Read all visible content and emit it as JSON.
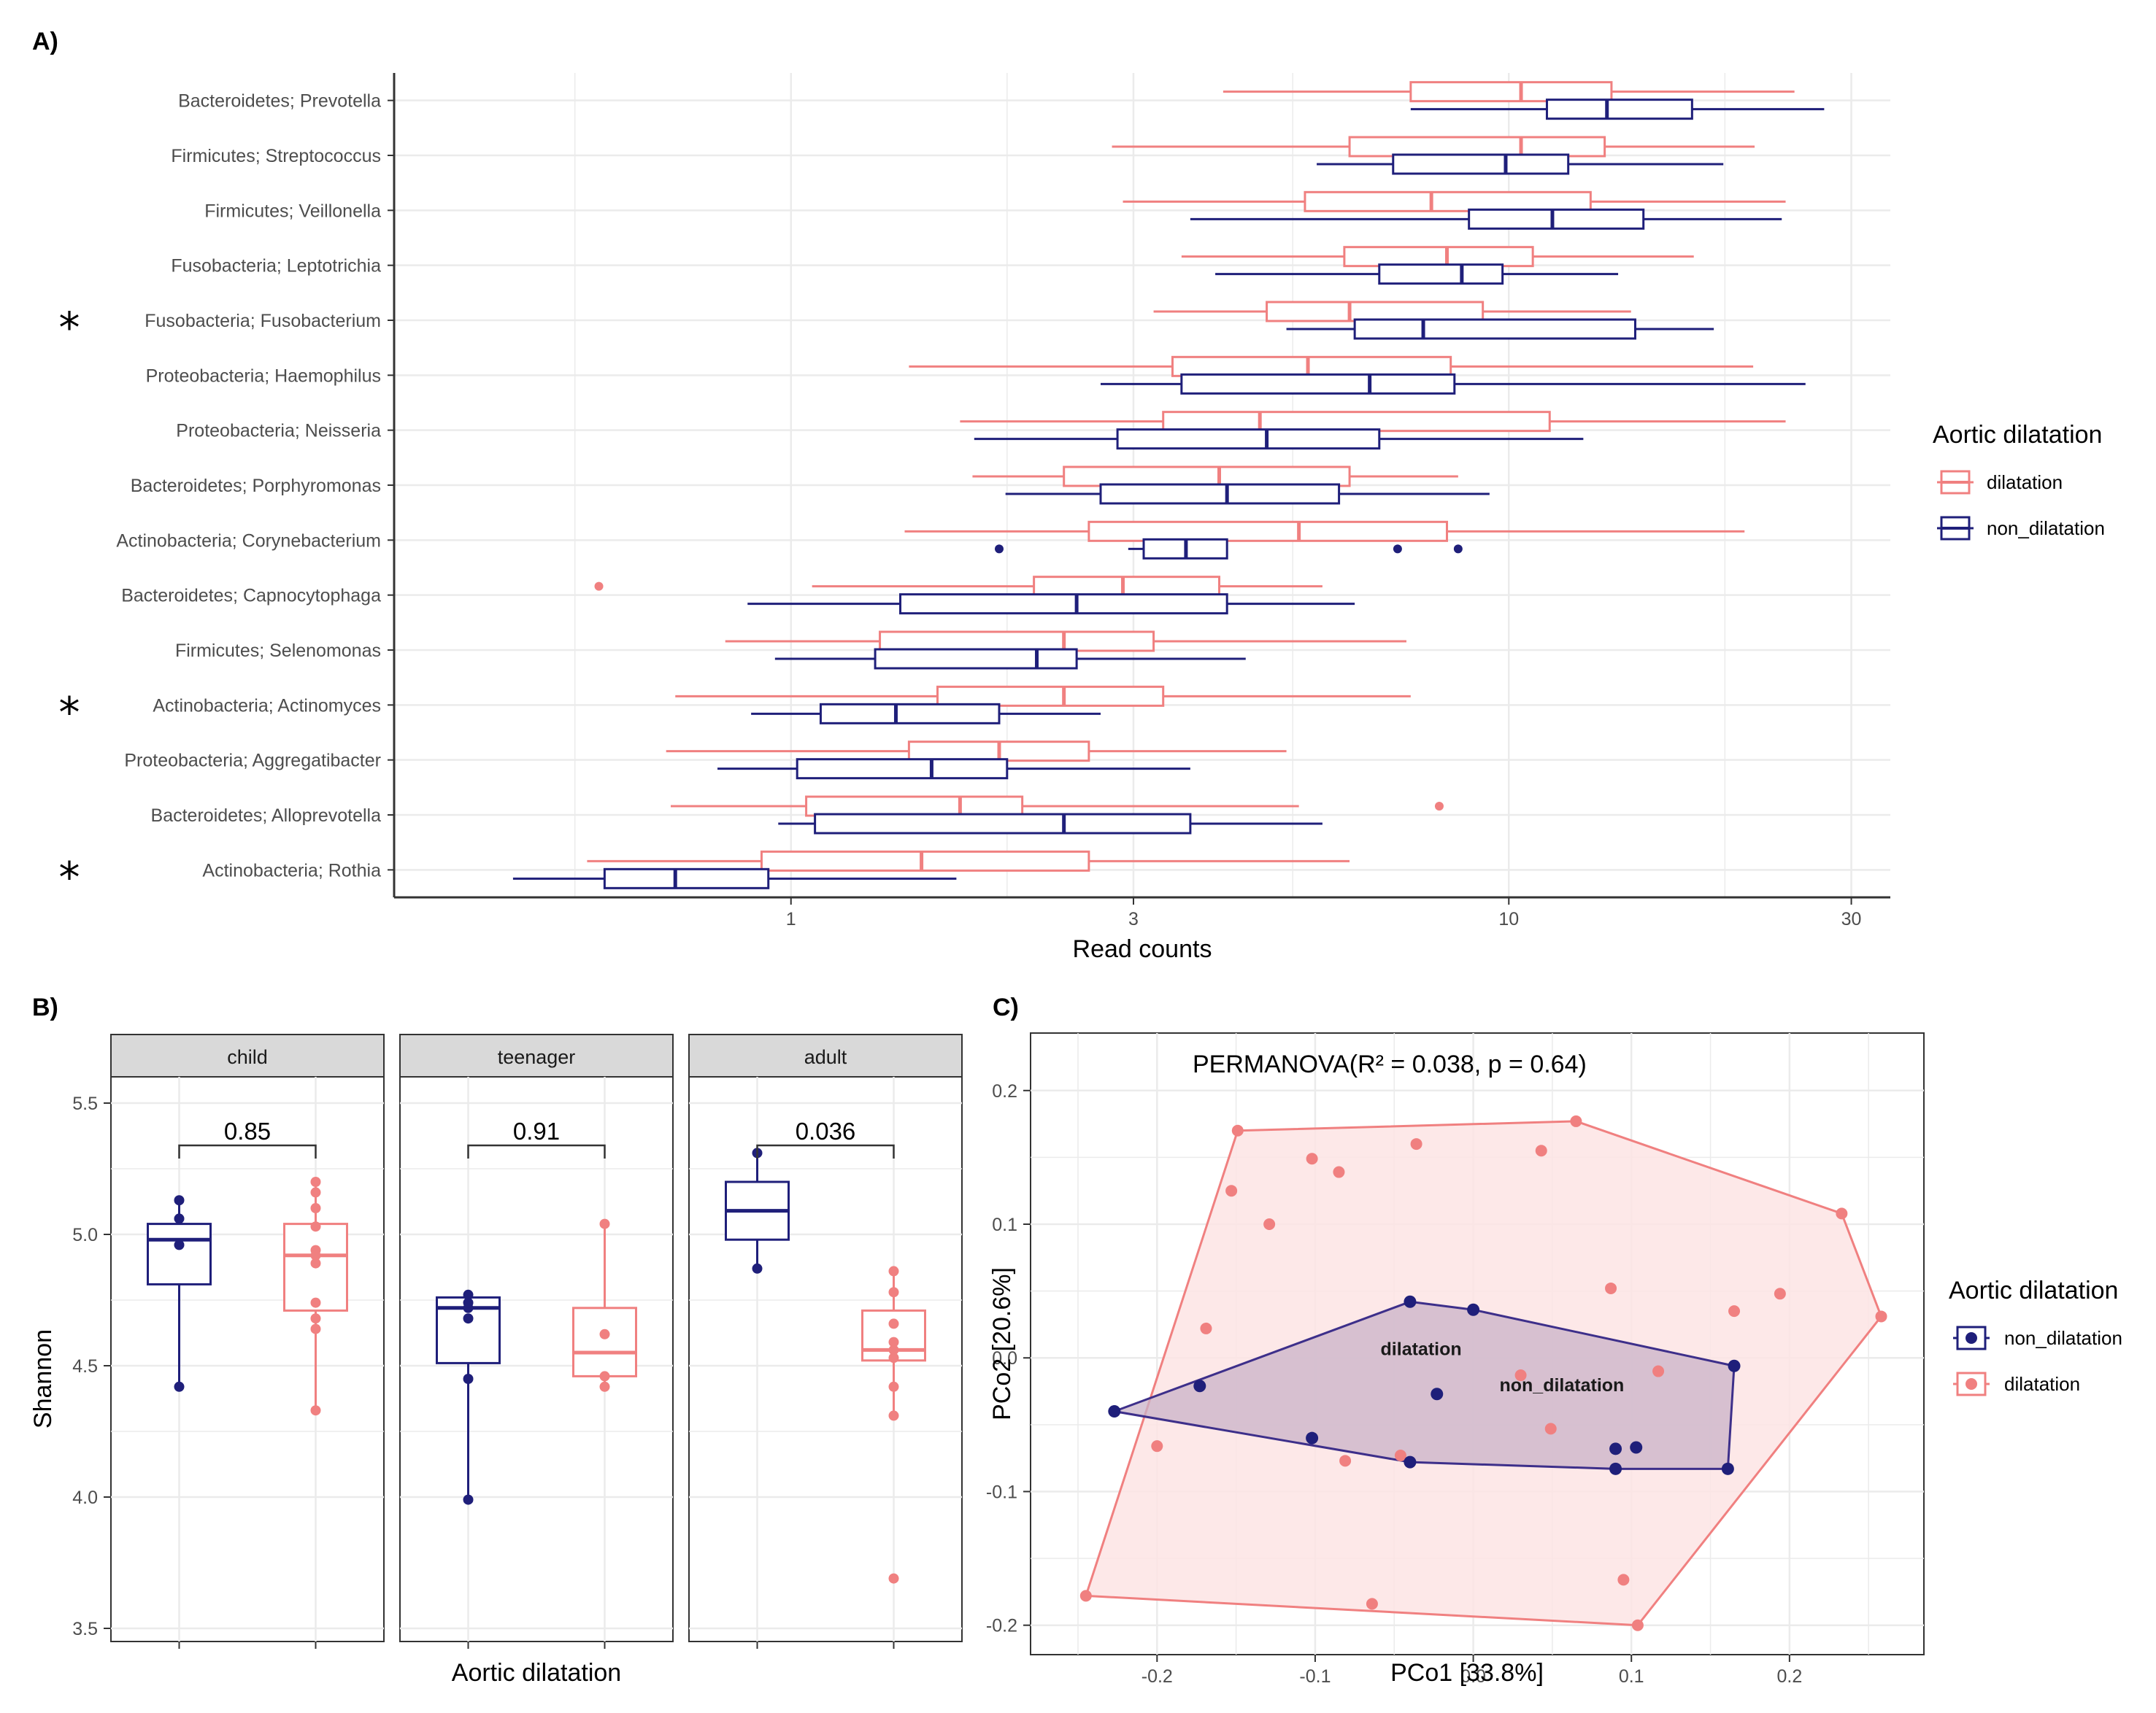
{
  "colors": {
    "dilatation": "#f08080",
    "non_dilatation": "#1f1f7a",
    "grid": "#ebebeb",
    "strip_bg": "#d9d9d9",
    "hull_dil_fill": "#fde4e4",
    "hull_non_fill": "#c9b3c8"
  },
  "panels": {
    "a": "A)",
    "b": "B)",
    "c": "C)"
  },
  "chart_data": [
    {
      "panel": "A",
      "type": "boxplot",
      "orientation": "horizontal",
      "x_scale": "log10",
      "xlabel": "Read counts",
      "xlim": [
        0.28,
        34
      ],
      "xticks": [
        1,
        3,
        10,
        30
      ],
      "xtick_labels": [
        "1",
        "3",
        "10",
        "30"
      ],
      "legend": {
        "title": "Aortic dilatation",
        "entries": [
          "dilatation",
          "non_dilatation"
        ],
        "position": "right"
      },
      "significance_marker": "*",
      "categories": [
        {
          "label": "Bacteroidetes; Prevotella",
          "star": false,
          "dilatation": {
            "wmin": 4.0,
            "q1": 7.3,
            "med": 10.4,
            "q3": 13.9,
            "wmax": 25.0
          },
          "non_dilatation": {
            "wmin": 7.3,
            "q1": 11.3,
            "med": 13.7,
            "q3": 18.0,
            "wmax": 27.5
          }
        },
        {
          "label": "Firmicutes; Streptococcus",
          "star": false,
          "dilatation": {
            "wmin": 2.8,
            "q1": 6.0,
            "med": 10.4,
            "q3": 13.6,
            "wmax": 22.0
          },
          "non_dilatation": {
            "wmin": 5.4,
            "q1": 6.9,
            "med": 9.9,
            "q3": 12.1,
            "wmax": 19.9
          }
        },
        {
          "label": "Firmicutes; Veillonella",
          "star": false,
          "dilatation": {
            "wmin": 2.9,
            "q1": 5.2,
            "med": 7.8,
            "q3": 13.0,
            "wmax": 24.3
          },
          "non_dilatation": {
            "wmin": 3.6,
            "q1": 8.8,
            "med": 11.5,
            "q3": 15.4,
            "wmax": 24.0
          }
        },
        {
          "label": "Fusobacteria; Leptotrichia",
          "star": false,
          "dilatation": {
            "wmin": 3.5,
            "q1": 5.9,
            "med": 8.2,
            "q3": 10.8,
            "wmax": 18.1
          },
          "non_dilatation": {
            "wmin": 3.9,
            "q1": 6.6,
            "med": 8.6,
            "q3": 9.8,
            "wmax": 14.2
          }
        },
        {
          "label": "Fusobacteria; Fusobacterium",
          "star": true,
          "dilatation": {
            "wmin": 3.2,
            "q1": 4.6,
            "med": 6.0,
            "q3": 9.2,
            "wmax": 14.8
          },
          "non_dilatation": {
            "wmin": 4.9,
            "q1": 6.1,
            "med": 7.6,
            "q3": 15.0,
            "wmax": 19.3
          }
        },
        {
          "label": "Proteobacteria; Haemophilus",
          "star": false,
          "dilatation": {
            "wmin": 1.46,
            "q1": 3.4,
            "med": 5.25,
            "q3": 8.3,
            "wmax": 21.9
          },
          "non_dilatation": {
            "wmin": 2.7,
            "q1": 3.5,
            "med": 6.4,
            "q3": 8.4,
            "wmax": 25.9
          }
        },
        {
          "label": "Proteobacteria; Neisseria",
          "star": false,
          "dilatation": {
            "wmin": 1.72,
            "q1": 3.3,
            "med": 4.5,
            "q3": 11.4,
            "wmax": 24.3
          },
          "non_dilatation": {
            "wmin": 1.8,
            "q1": 2.85,
            "med": 4.6,
            "q3": 6.6,
            "wmax": 12.7
          }
        },
        {
          "label": "Bacteroidetes; Porphyromonas",
          "star": false,
          "dilatation": {
            "wmin": 1.79,
            "q1": 2.4,
            "med": 3.95,
            "q3": 6.0,
            "wmax": 8.5
          },
          "non_dilatation": {
            "wmin": 1.99,
            "q1": 2.7,
            "med": 4.05,
            "q3": 5.8,
            "wmax": 9.4
          }
        },
        {
          "label": "Actinobacteria; Corynebacterium",
          "star": false,
          "dilatation": {
            "wmin": 1.44,
            "q1": 2.6,
            "med": 5.1,
            "q3": 8.2,
            "wmax": 21.3
          },
          "non_dilatation": {
            "wmin": 2.95,
            "q1": 3.1,
            "med": 3.55,
            "q3": 4.05,
            "wmax": 4.05
          },
          "outliers_non_dilatation": [
            1.95,
            7.0,
            8.5
          ]
        },
        {
          "label": "Bacteroidetes; Capnocytophaga",
          "star": false,
          "dilatation": {
            "wmin": 1.07,
            "q1": 2.18,
            "med": 2.9,
            "q3": 3.95,
            "wmax": 5.5
          },
          "non_dilatation": {
            "wmin": 0.87,
            "q1": 1.42,
            "med": 2.5,
            "q3": 4.05,
            "wmax": 6.1
          },
          "outliers_dilatation": [
            0.54
          ]
        },
        {
          "label": "Firmicutes; Selenomonas",
          "star": false,
          "dilatation": {
            "wmin": 0.81,
            "q1": 1.33,
            "med": 2.4,
            "q3": 3.2,
            "wmax": 7.2
          },
          "non_dilatation": {
            "wmin": 0.95,
            "q1": 1.31,
            "med": 2.2,
            "q3": 2.5,
            "wmax": 4.3
          }
        },
        {
          "label": "Actinobacteria; Actinomyces",
          "star": true,
          "dilatation": {
            "wmin": 0.69,
            "q1": 1.6,
            "med": 2.4,
            "q3": 3.3,
            "wmax": 7.3
          },
          "non_dilatation": {
            "wmin": 0.88,
            "q1": 1.1,
            "med": 1.4,
            "q3": 1.95,
            "wmax": 2.7
          }
        },
        {
          "label": "Proteobacteria; Aggregatibacter",
          "star": false,
          "dilatation": {
            "wmin": 0.67,
            "q1": 1.46,
            "med": 1.95,
            "q3": 2.6,
            "wmax": 4.9
          },
          "non_dilatation": {
            "wmin": 0.79,
            "q1": 1.02,
            "med": 1.57,
            "q3": 2.0,
            "wmax": 3.6
          }
        },
        {
          "label": "Bacteroidetes; Alloprevotella",
          "star": false,
          "dilatation": {
            "wmin": 0.68,
            "q1": 1.05,
            "med": 1.72,
            "q3": 2.1,
            "wmax": 5.1
          },
          "non_dilatation": {
            "wmin": 0.96,
            "q1": 1.08,
            "med": 2.4,
            "q3": 3.6,
            "wmax": 5.5
          },
          "outliers_dilatation": [
            8.0
          ]
        },
        {
          "label": "Actinobacteria; Rothia",
          "star": true,
          "dilatation": {
            "wmin": 0.52,
            "q1": 0.91,
            "med": 1.52,
            "q3": 2.6,
            "wmax": 6.0
          },
          "non_dilatation": {
            "wmin": 0.41,
            "q1": 0.55,
            "med": 0.69,
            "q3": 0.93,
            "wmax": 1.7
          }
        }
      ]
    },
    {
      "panel": "B",
      "type": "boxplot",
      "facets": [
        "child",
        "teenager",
        "adult"
      ],
      "xlabel": "Aortic dilatation",
      "ylabel": "Shannon",
      "ylim": [
        3.45,
        5.6
      ],
      "yticks": [
        3.5,
        4.0,
        4.5,
        5.0,
        5.5
      ],
      "ytick_labels": [
        "3.5",
        "4.0",
        "4.5",
        "5.0",
        "5.5"
      ],
      "groups": [
        {
          "facet": "child",
          "p_value": "0.85",
          "non_dilatation": {
            "wmin": 4.42,
            "q1": 4.81,
            "med": 4.98,
            "q3": 5.04,
            "wmax": 5.13,
            "points": [
              4.42,
              4.96,
              5.06,
              5.13
            ]
          },
          "dilatation": {
            "wmin": 4.33,
            "q1": 4.71,
            "med": 4.92,
            "q3": 5.04,
            "wmax": 5.2,
            "points": [
              4.33,
              4.64,
              4.68,
              4.74,
              4.89,
              4.92,
              4.94,
              5.03,
              5.1,
              5.16,
              5.2
            ]
          }
        },
        {
          "facet": "teenager",
          "p_value": "0.91",
          "non_dilatation": {
            "wmin": 3.99,
            "q1": 4.51,
            "med": 4.72,
            "q3": 4.76,
            "wmax": 4.77,
            "points": [
              3.99,
              4.45,
              4.68,
              4.72,
              4.74,
              4.77
            ]
          },
          "dilatation": {
            "wmin": 4.42,
            "q1": 4.46,
            "med": 4.55,
            "q3": 4.72,
            "wmax": 5.04,
            "points": [
              4.42,
              4.46,
              4.62,
              5.04
            ]
          }
        },
        {
          "facet": "adult",
          "p_value": "0.036",
          "non_dilatation": {
            "wmin": 4.87,
            "q1": 4.98,
            "med": 5.09,
            "q3": 5.2,
            "wmax": 5.31,
            "points": [
              4.87,
              5.31
            ]
          },
          "dilatation": {
            "wmin": 4.31,
            "q1": 4.52,
            "med": 4.56,
            "q3": 4.71,
            "wmax": 4.86,
            "points": [
              3.69,
              4.31,
              4.42,
              4.53,
              4.56,
              4.59,
              4.66,
              4.78,
              4.86
            ]
          }
        }
      ],
      "legend": "none"
    },
    {
      "panel": "C",
      "type": "scatter",
      "title": "PERMANOVA(R² = 0.038, p = 0.64)",
      "xlabel": "PCo1 [33.8%]",
      "ylabel": "PCo2 [20.6%]",
      "xlim": [
        -0.28,
        0.285
      ],
      "ylim": [
        -0.222,
        0.243
      ],
      "xticks": [
        -0.2,
        -0.1,
        0.0,
        0.1,
        0.2
      ],
      "xtick_labels": [
        "-0.2",
        "-0.1",
        "0.0",
        "0.1",
        "0.2"
      ],
      "yticks": [
        -0.2,
        -0.1,
        0.0,
        0.1,
        0.2
      ],
      "ytick_labels": [
        "-0.2",
        "-0.1",
        "0.0",
        "0.1",
        "0.2"
      ],
      "legend": {
        "title": "Aortic dilatation",
        "entries": [
          "non_dilatation",
          "dilatation"
        ],
        "position": "right"
      },
      "centroid_labels": [
        {
          "label": "dilatation",
          "x": -0.033,
          "y": 0.002
        },
        {
          "label": "non_dilatation",
          "x": 0.056,
          "y": -0.025
        }
      ],
      "series": [
        {
          "name": "dilatation",
          "points": [
            [
              -0.149,
              0.17
            ],
            [
              -0.153,
              0.125
            ],
            [
              -0.129,
              0.1
            ],
            [
              -0.102,
              0.149
            ],
            [
              -0.085,
              0.139
            ],
            [
              -0.036,
              0.16
            ],
            [
              0.043,
              0.155
            ],
            [
              0.065,
              0.177
            ],
            [
              0.233,
              0.108
            ],
            [
              0.258,
              0.031
            ],
            [
              0.194,
              0.048
            ],
            [
              0.165,
              0.035
            ],
            [
              0.087,
              0.052
            ],
            [
              -0.169,
              0.022
            ],
            [
              0.03,
              -0.013
            ],
            [
              0.117,
              -0.01
            ],
            [
              0.049,
              -0.053
            ],
            [
              -0.2,
              -0.066
            ],
            [
              -0.081,
              -0.077
            ],
            [
              -0.046,
              -0.073
            ],
            [
              -0.064,
              -0.184
            ],
            [
              0.095,
              -0.166
            ],
            [
              0.104,
              -0.2
            ],
            [
              -0.245,
              -0.178
            ]
          ],
          "hull": [
            [
              -0.149,
              0.17
            ],
            [
              0.065,
              0.177
            ],
            [
              0.233,
              0.108
            ],
            [
              0.258,
              0.031
            ],
            [
              0.104,
              -0.2
            ],
            [
              -0.245,
              -0.178
            ]
          ]
        },
        {
          "name": "non_dilatation",
          "points": [
            [
              -0.04,
              0.042
            ],
            [
              0.0,
              0.036
            ],
            [
              -0.173,
              -0.021
            ],
            [
              -0.227,
              -0.04
            ],
            [
              -0.102,
              -0.06
            ],
            [
              -0.04,
              -0.078
            ],
            [
              -0.023,
              -0.027
            ],
            [
              0.09,
              -0.068
            ],
            [
              0.103,
              -0.067
            ],
            [
              0.09,
              -0.083
            ],
            [
              0.161,
              -0.083
            ],
            [
              0.165,
              -0.006
            ]
          ],
          "hull": [
            [
              -0.04,
              0.042
            ],
            [
              0.0,
              0.036
            ],
            [
              0.165,
              -0.006
            ],
            [
              0.161,
              -0.083
            ],
            [
              0.09,
              -0.083
            ],
            [
              -0.04,
              -0.078
            ],
            [
              -0.227,
              -0.04
            ]
          ]
        }
      ]
    }
  ]
}
